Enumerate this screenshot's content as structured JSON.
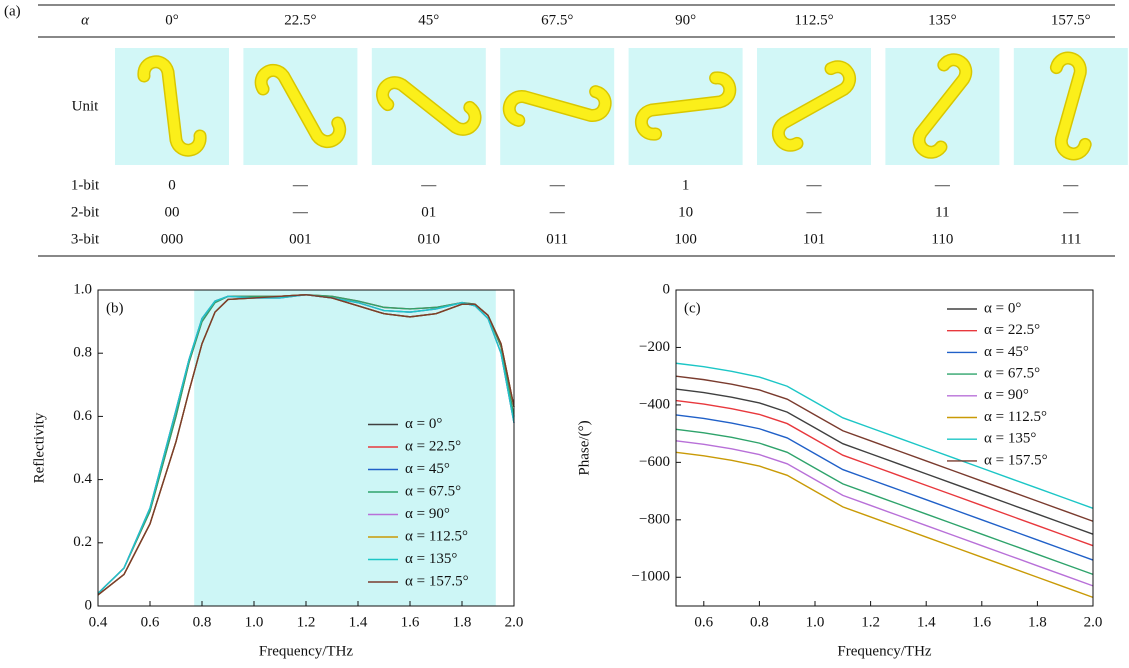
{
  "panel_a": {
    "label": "(a)",
    "header": [
      "α",
      "0°",
      "22.5°",
      "45°",
      "67.5°",
      "90°",
      "112.5°",
      "135°",
      "157.5°"
    ],
    "unit_label": "Unit",
    "rows": [
      [
        "1-bit",
        "0",
        "—",
        "—",
        "—",
        "1",
        "—",
        "—",
        "—"
      ],
      [
        "2-bit",
        "00",
        "—",
        "01",
        "—",
        "10",
        "—",
        "11",
        "—"
      ],
      [
        "3-bit",
        "000",
        "001",
        "010",
        "011",
        "100",
        "101",
        "110",
        "111"
      ]
    ]
  },
  "chart_data": [
    {
      "type": "line",
      "panel_label": "(b)",
      "x_label": "Frequency/THz",
      "y_label": "Reflectivity",
      "xlim": [
        0.4,
        2.0
      ],
      "ylim": [
        0,
        1.0
      ],
      "xticks": [
        0.4,
        0.6,
        0.8,
        {
          "value": 1,
          "label": "1.0"
        },
        1.2,
        1.4,
        1.6,
        1.8,
        {
          "value": 2,
          "label": "2.0"
        }
      ],
      "yticks": [
        0,
        0.2,
        0.4,
        0.6,
        0.8,
        {
          "value": 1,
          "label": "1.0"
        }
      ],
      "shaded_region": [
        0.77,
        1.93
      ],
      "shaded_color": "#cdf6f6",
      "legend": "lower right",
      "x": [
        0.4,
        0.5,
        0.6,
        0.7,
        0.75,
        0.8,
        0.85,
        0.9,
        1.0,
        1.1,
        1.2,
        1.3,
        1.4,
        1.5,
        1.6,
        1.7,
        1.8,
        1.85,
        1.9,
        1.95,
        2.0
      ],
      "series": [
        {
          "name": "α = 0°",
          "color": "#404040",
          "values": [
            0.035,
            0.1,
            0.26,
            0.52,
            0.68,
            0.83,
            0.93,
            0.97,
            0.975,
            0.98,
            0.985,
            0.975,
            0.95,
            0.925,
            0.915,
            0.925,
            0.955,
            0.955,
            0.92,
            0.83,
            0.63
          ]
        },
        {
          "name": "α = 22.5°",
          "color": "#e8383d",
          "values": [
            0.04,
            0.12,
            0.3,
            0.6,
            0.77,
            0.9,
            0.96,
            0.98,
            0.98,
            0.98,
            0.985,
            0.98,
            0.965,
            0.945,
            0.94,
            0.945,
            0.96,
            0.955,
            0.92,
            0.82,
            0.6
          ]
        },
        {
          "name": "α = 45°",
          "color": "#2060c8",
          "values": [
            0.04,
            0.12,
            0.31,
            0.62,
            0.78,
            0.91,
            0.965,
            0.98,
            0.975,
            0.975,
            0.985,
            0.975,
            0.96,
            0.935,
            0.93,
            0.94,
            0.96,
            0.95,
            0.91,
            0.8,
            0.58
          ]
        },
        {
          "name": "α = 67.5°",
          "color": "#2ea36b",
          "values": [
            0.04,
            0.12,
            0.3,
            0.6,
            0.77,
            0.9,
            0.96,
            0.98,
            0.98,
            0.98,
            0.985,
            0.98,
            0.965,
            0.945,
            0.94,
            0.945,
            0.96,
            0.955,
            0.92,
            0.82,
            0.6
          ]
        },
        {
          "name": "α = 90°",
          "color": "#b870d8",
          "values": [
            0.04,
            0.12,
            0.31,
            0.62,
            0.78,
            0.91,
            0.965,
            0.98,
            0.975,
            0.975,
            0.985,
            0.975,
            0.96,
            0.935,
            0.93,
            0.94,
            0.96,
            0.95,
            0.91,
            0.8,
            0.58
          ]
        },
        {
          "name": "α = 112.5°",
          "color": "#c99a06",
          "values": [
            0.035,
            0.1,
            0.26,
            0.52,
            0.68,
            0.83,
            0.93,
            0.97,
            0.975,
            0.98,
            0.985,
            0.975,
            0.95,
            0.925,
            0.915,
            0.925,
            0.955,
            0.955,
            0.92,
            0.83,
            0.63
          ]
        },
        {
          "name": "α = 135°",
          "color": "#1cc6c6",
          "values": [
            0.04,
            0.12,
            0.31,
            0.62,
            0.78,
            0.91,
            0.965,
            0.98,
            0.975,
            0.975,
            0.985,
            0.975,
            0.96,
            0.935,
            0.93,
            0.94,
            0.96,
            0.95,
            0.91,
            0.8,
            0.58
          ]
        },
        {
          "name": "α = 157.5°",
          "color": "#7a3b2e",
          "values": [
            0.035,
            0.1,
            0.26,
            0.52,
            0.68,
            0.83,
            0.93,
            0.97,
            0.975,
            0.98,
            0.985,
            0.975,
            0.95,
            0.925,
            0.915,
            0.925,
            0.955,
            0.955,
            0.92,
            0.83,
            0.63
          ]
        }
      ]
    },
    {
      "type": "line",
      "panel_label": "(c)",
      "x_label": "Frequency/THz",
      "y_label": "Phase/(°)",
      "xlim": [
        0.5,
        2.0
      ],
      "ylim": [
        -1100,
        0
      ],
      "xticks": [
        0.6,
        0.8,
        {
          "value": 1,
          "label": "1.0"
        },
        1.2,
        1.4,
        1.6,
        1.8,
        {
          "value": 2,
          "label": "2.0"
        }
      ],
      "yticks": [
        0,
        {
          "value": -200,
          "label": "−200"
        },
        {
          "value": -400,
          "label": "−400"
        },
        {
          "value": -600,
          "label": "−600"
        },
        {
          "value": -800,
          "label": "−800"
        },
        {
          "value": -1000,
          "label": "−1000"
        }
      ],
      "legend": "upper right",
      "x": [
        0.5,
        0.6,
        0.7,
        0.8,
        0.9,
        1.0,
        1.1,
        1.2,
        1.3,
        1.4,
        1.5,
        1.6,
        1.7,
        1.8,
        1.9,
        2.0
      ],
      "series": [
        {
          "name": "α = 0°",
          "color": "#404040",
          "values": [
            -345,
            -357,
            -373,
            -393,
            -425,
            -480,
            -535,
            -570,
            -605,
            -640,
            -675,
            -710,
            -745,
            -780,
            -815,
            -850
          ]
        },
        {
          "name": "α = 22.5°",
          "color": "#e8383d",
          "values": [
            -385,
            -397,
            -413,
            -433,
            -465,
            -520,
            -575,
            -610,
            -645,
            -680,
            -715,
            -750,
            -785,
            -820,
            -855,
            -890
          ]
        },
        {
          "name": "α = 45°",
          "color": "#2060c8",
          "values": [
            -435,
            -447,
            -463,
            -483,
            -515,
            -570,
            -625,
            -660,
            -695,
            -730,
            -765,
            -800,
            -835,
            -870,
            -905,
            -940
          ]
        },
        {
          "name": "α = 67.5°",
          "color": "#2ea36b",
          "values": [
            -485,
            -497,
            -513,
            -533,
            -565,
            -620,
            -675,
            -710,
            -745,
            -780,
            -815,
            -850,
            -885,
            -920,
            -955,
            -990
          ]
        },
        {
          "name": "α = 90°",
          "color": "#b870d8",
          "values": [
            -525,
            -537,
            -553,
            -573,
            -605,
            -660,
            -715,
            -750,
            -785,
            -820,
            -855,
            -890,
            -925,
            -960,
            -995,
            -1030
          ]
        },
        {
          "name": "α = 112.5°",
          "color": "#c99a06",
          "values": [
            -565,
            -577,
            -593,
            -613,
            -645,
            -700,
            -755,
            -790,
            -825,
            -860,
            -895,
            -930,
            -965,
            -1000,
            -1035,
            -1070
          ]
        },
        {
          "name": "α = 135°",
          "color": "#1cc6c6",
          "values": [
            -255,
            -267,
            -283,
            -303,
            -335,
            -390,
            -445,
            -480,
            -515,
            -550,
            -585,
            -620,
            -655,
            -690,
            -725,
            -760
          ]
        },
        {
          "name": "α = 157.5°",
          "color": "#7a3b2e",
          "values": [
            -300,
            -312,
            -328,
            -348,
            -380,
            -435,
            -490,
            -525,
            -560,
            -595,
            -630,
            -665,
            -700,
            -735,
            -770,
            -805
          ]
        }
      ]
    }
  ]
}
